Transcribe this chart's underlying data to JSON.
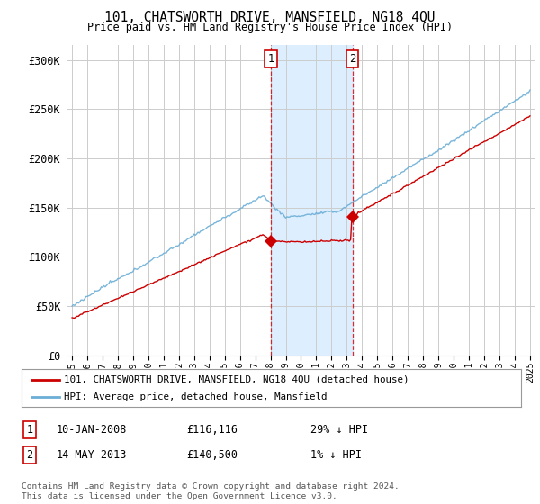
{
  "title": "101, CHATSWORTH DRIVE, MANSFIELD, NG18 4QU",
  "subtitle": "Price paid vs. HM Land Registry's House Price Index (HPI)",
  "ylabel_ticks": [
    "£0",
    "£50K",
    "£100K",
    "£150K",
    "£200K",
    "£250K",
    "£300K"
  ],
  "ytick_values": [
    0,
    50000,
    100000,
    150000,
    200000,
    250000,
    300000
  ],
  "ylim": [
    0,
    315000
  ],
  "xlim_start": 1994.7,
  "xlim_end": 2025.3,
  "sale1_year": 2008.03,
  "sale1_price": 116116,
  "sale2_year": 2013.37,
  "sale2_price": 140500,
  "hpi_color": "#6baed6",
  "price_color": "#cc0000",
  "shade_color": "#ddeeff",
  "background_color": "#ffffff",
  "grid_color": "#cccccc",
  "legend1_text": "101, CHATSWORTH DRIVE, MANSFIELD, NG18 4QU (detached house)",
  "legend2_text": "HPI: Average price, detached house, Mansfield",
  "table_row1": [
    "1",
    "10-JAN-2008",
    "£116,116",
    "29% ↓ HPI"
  ],
  "table_row2": [
    "2",
    "14-MAY-2013",
    "£140,500",
    "1% ↓ HPI"
  ],
  "footnote": "Contains HM Land Registry data © Crown copyright and database right 2024.\nThis data is licensed under the Open Government Licence v3.0."
}
